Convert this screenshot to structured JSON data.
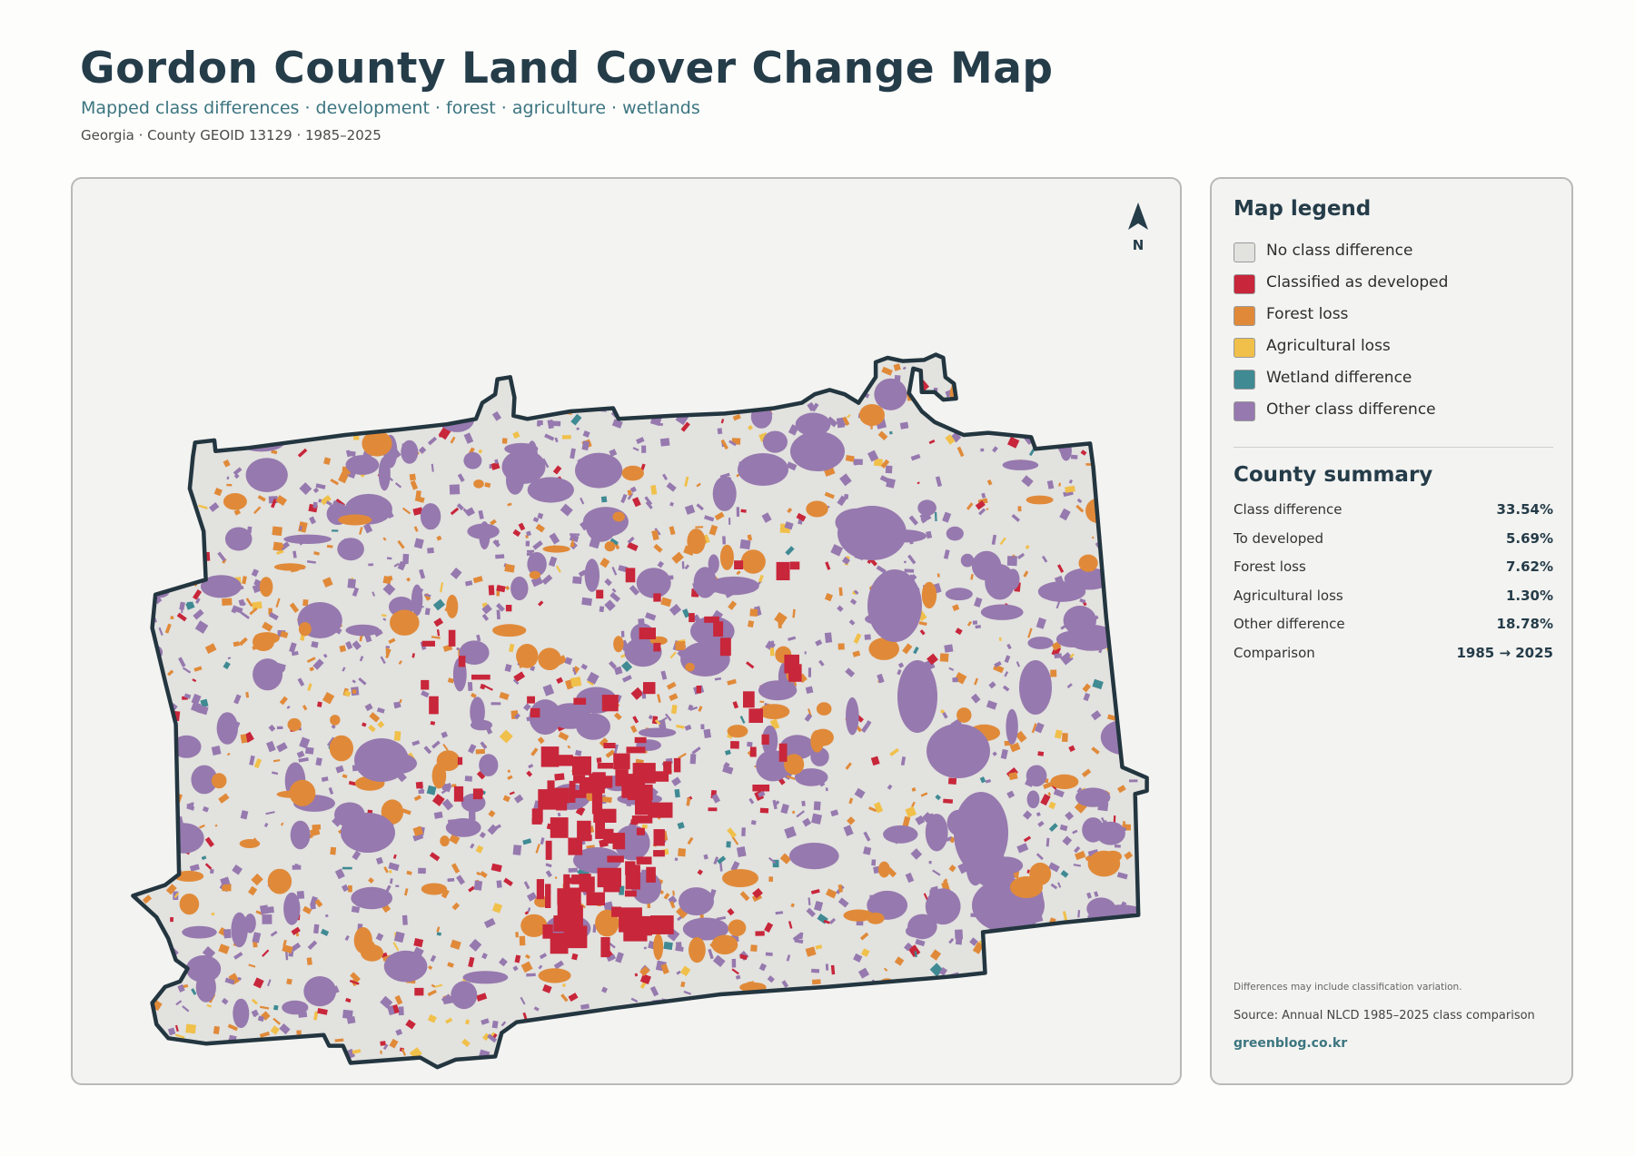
{
  "header": {
    "title": "Gordon County Land Cover Change Map",
    "subtitle": "Mapped class differences · development · forest · agriculture · wetlands",
    "meta": "Georgia · County GEOID 13129 · 1985–2025"
  },
  "map": {
    "north_label": "N",
    "colors": {
      "no_difference": "#e2e2df",
      "developed": "#c8263a",
      "forest_loss": "#e08a39",
      "agricultural_loss": "#f0c04a",
      "wetland": "#3f8a93",
      "other": "#9679ae",
      "outline": "#233640",
      "background": "#f3f3f1"
    }
  },
  "legend": {
    "heading": "Map legend",
    "items": [
      {
        "label": "No class difference",
        "color": "#e2e2df"
      },
      {
        "label": "Classified as developed",
        "color": "#c8263a"
      },
      {
        "label": "Forest loss",
        "color": "#e08a39"
      },
      {
        "label": "Agricultural loss",
        "color": "#f0c04a"
      },
      {
        "label": "Wetland difference",
        "color": "#3f8a93"
      },
      {
        "label": "Other class difference",
        "color": "#9679ae"
      }
    ]
  },
  "summary": {
    "heading": "County summary",
    "rows": [
      {
        "label": "Class difference",
        "value": "33.54%"
      },
      {
        "label": "To developed",
        "value": "5.69%"
      },
      {
        "label": "Forest loss",
        "value": "7.62%"
      },
      {
        "label": "Agricultural loss",
        "value": "1.30%"
      },
      {
        "label": "Other difference",
        "value": "18.78%"
      },
      {
        "label": "Comparison",
        "value": "1985 → 2025"
      }
    ]
  },
  "footer": {
    "note": "Differences may include classification variation.",
    "source": "Source: Annual NLCD 1985–2025 class comparison",
    "site": "greenblog.co.kr"
  }
}
